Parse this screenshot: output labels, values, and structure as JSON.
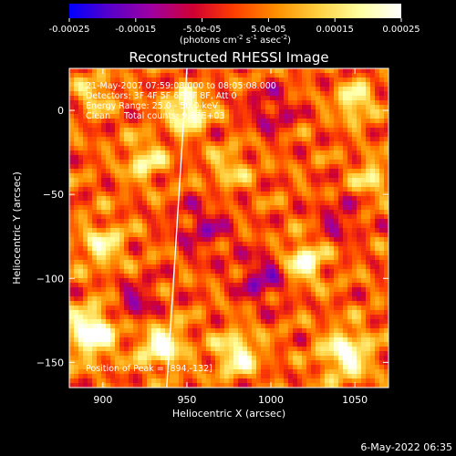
{
  "chart_data": {
    "type": "heatmap",
    "title": "Reconstructed RHESSI Image",
    "xlabel": "Heliocentric X (arcsec)",
    "ylabel": "Heliocentric Y (arcsec)",
    "xlim": [
      880,
      1070
    ],
    "ylim": [
      -165,
      25
    ],
    "x_ticks": [
      900,
      950,
      1000,
      1050
    ],
    "y_ticks": [
      0,
      -50,
      -100,
      -150
    ],
    "colorbar": {
      "min": -0.00025,
      "max": 0.00025,
      "tick_values": [
        -0.00025,
        -0.00015,
        -5e-05,
        5e-05,
        0.00015,
        0.00025
      ],
      "tick_labels": [
        "-0.00025",
        "-0.00015",
        "-5.0e-05",
        "5.0e-05",
        "0.00015",
        "0.00025"
      ],
      "label_parts": [
        "(photons cm",
        "-2",
        " s",
        "-1",
        " asec",
        "-2",
        ")"
      ],
      "colors": [
        "#0000ff",
        "#5a00c8",
        "#a000a0",
        "#d00030",
        "#ff4000",
        "#ff9000",
        "#ffd040",
        "#ffffa0",
        "#ffffff"
      ]
    },
    "grid": false,
    "annotations": [
      "21-May-2007 07:59:08.000 to 08:05:08.000",
      "Detectors: 3F 4F 5F 6F 7F 8F, Att 0",
      "Energy Range: 25.0 - 50.0 keV",
      "Clean     Total counts: 9.67E+03"
    ],
    "peak_label": "Position of Peak = [894,-132]",
    "limb_line": {
      "x": [
        950,
        938
      ],
      "y": [
        25,
        -165
      ]
    },
    "hot_spots": [
      {
        "x": 950,
        "y": 0,
        "amp": 0.00025,
        "sigma": 8
      },
      {
        "x": 893,
        "y": -132,
        "amp": 0.00026,
        "sigma": 10
      },
      {
        "x": 935,
        "y": -140,
        "amp": 0.00023,
        "sigma": 9
      },
      {
        "x": 1020,
        "y": -90,
        "amp": 0.00022,
        "sigma": 8
      },
      {
        "x": 1050,
        "y": 5,
        "amp": 0.0002,
        "sigma": 7
      },
      {
        "x": 1045,
        "y": -145,
        "amp": 0.00022,
        "sigma": 10
      },
      {
        "x": 980,
        "y": -145,
        "amp": 0.0002,
        "sigma": 9
      },
      {
        "x": 900,
        "y": -80,
        "amp": 0.00016,
        "sigma": 9
      },
      {
        "x": 925,
        "y": -30,
        "amp": 0.00016,
        "sigma": 8
      },
      {
        "x": 1060,
        "y": -40,
        "amp": 0.00015,
        "sigma": 7
      },
      {
        "x": 975,
        "y": -35,
        "amp": 0.00012,
        "sigma": 8
      },
      {
        "x": 895,
        "y": 10,
        "amp": 0.00014,
        "sigma": 7
      }
    ],
    "cold_spots": [
      {
        "x": 995,
        "y": -100,
        "amp": -0.00014,
        "sigma": 10
      },
      {
        "x": 920,
        "y": -115,
        "amp": -0.00012,
        "sigma": 9
      },
      {
        "x": 1000,
        "y": 0,
        "amp": -0.0001,
        "sigma": 10
      },
      {
        "x": 960,
        "y": -70,
        "amp": -0.0001,
        "sigma": 12
      },
      {
        "x": 1040,
        "y": -65,
        "amp": -0.0001,
        "sigma": 9
      }
    ]
  },
  "footer": {
    "timestamp": "6-May-2022 06:35"
  }
}
